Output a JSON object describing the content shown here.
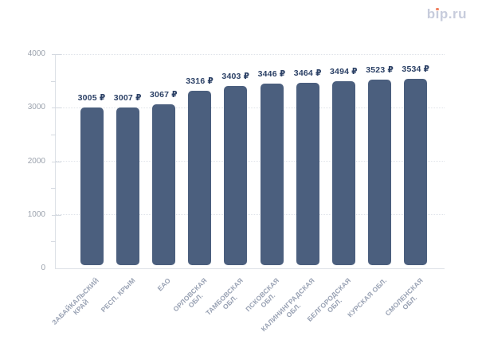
{
  "logo": {
    "text": "bip.ru",
    "color": "#c7ccdc",
    "dot_color": "#f07f5e"
  },
  "chart_data": {
    "type": "bar",
    "title": "",
    "categories": [
      "ЗАБАЙКАЛЬСКИЙ КРАЙ",
      "РЕСП. КРЫМ",
      "ЕАО",
      "ОРЛОВСКАЯ ОБЛ.",
      "ТАМБОВСКАЯ ОБЛ.",
      "ПСКОВСКАЯ ОБЛ.",
      "КАЛИНИНГРАДСКАЯ ОБЛ.",
      "БЕЛГОРОДСКАЯ ОБЛ.",
      "КУРСКАЯ ОБЛ.",
      "СМОЛЕНСКАЯ ОБЛ."
    ],
    "category_lines": [
      [
        "ЗАБАЙКАЛЬСКИЙ",
        "КРАЙ"
      ],
      [
        "РЕСП. КРЫМ"
      ],
      [
        "ЕАО"
      ],
      [
        "ОРЛОВСКАЯ",
        "ОБЛ."
      ],
      [
        "ТАМБОВСКАЯ",
        "ОБЛ."
      ],
      [
        "ПСКОВСКАЯ",
        "ОБЛ."
      ],
      [
        "КАЛИНИНГРАДСКАЯ",
        "ОБЛ."
      ],
      [
        "БЕЛГОРОДСКАЯ",
        "ОБЛ."
      ],
      [
        "КУРСКАЯ ОБЛ."
      ],
      [
        "СМОЛЕНСКАЯ",
        "ОБЛ."
      ]
    ],
    "values": [
      3005,
      3007,
      3067,
      3316,
      3403,
      3446,
      3464,
      3494,
      3523,
      3534
    ],
    "value_suffix": " ₽",
    "xlabel": "",
    "ylabel": "",
    "ylim": [
      0,
      4000
    ],
    "yticks": [
      0,
      1000,
      2000,
      3000,
      4000
    ],
    "yticks_minor": [
      500,
      1500,
      2500,
      3500
    ],
    "grid": "horizontal-dotted",
    "legend": "none",
    "bar_color": "#4b5f7e",
    "value_label_color": "#2c4166",
    "ytick_label_color": "#9ba2ad",
    "xtick_label_color": "#98a1b3",
    "grid_color": "#dfe3e9",
    "axis_color": "#dde1e7"
  }
}
